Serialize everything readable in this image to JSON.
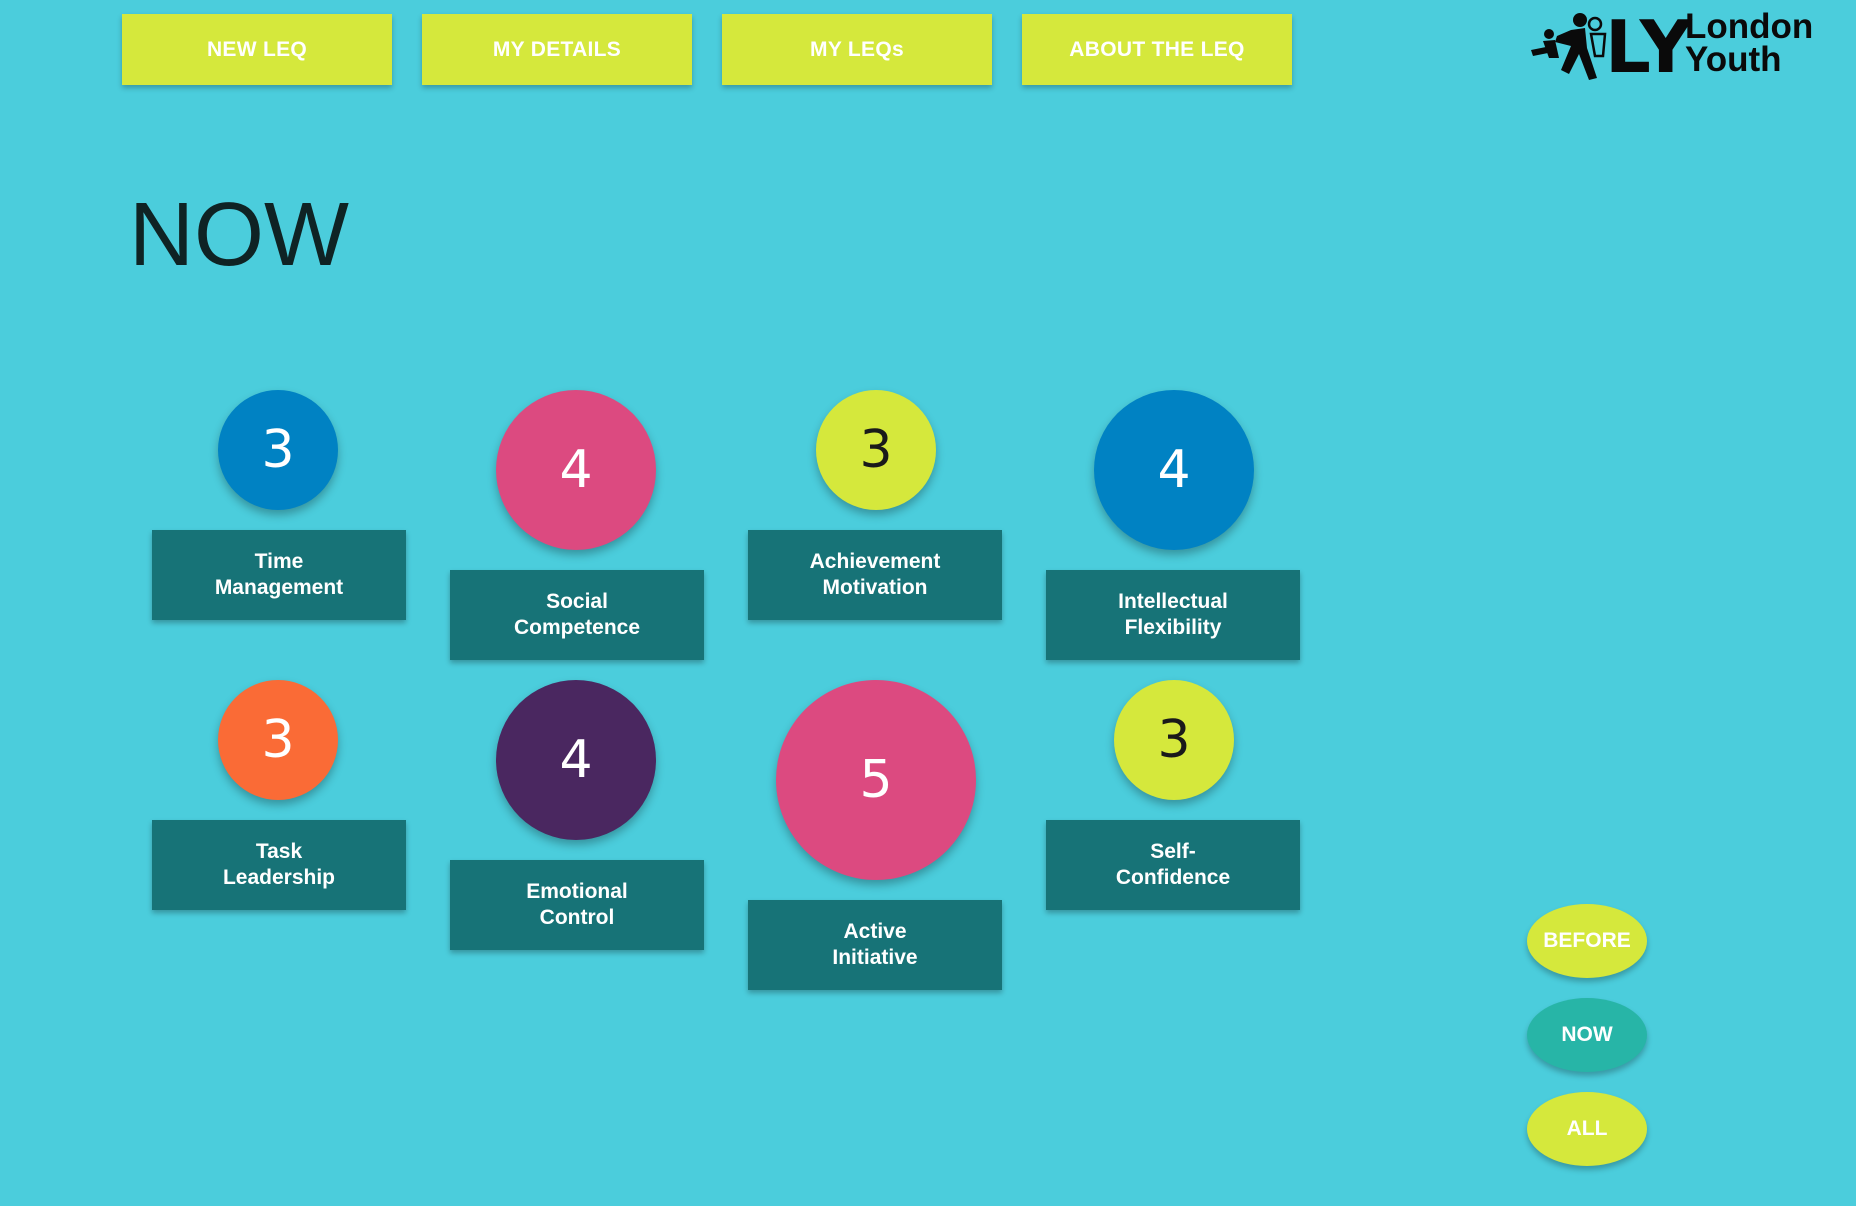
{
  "nav": {
    "new_leq": "NEW LEQ",
    "my_details": "MY DETAILS",
    "my_leqs": "MY LEQs",
    "about": "ABOUT THE LEQ"
  },
  "logo": {
    "initials": "LY",
    "line1": "London",
    "line2": "Youth"
  },
  "page_title": "NOW",
  "skills": [
    {
      "value": "3",
      "label": "Time\nManagement",
      "color": "#0082c3"
    },
    {
      "value": "4",
      "label": "Social\nCompetence",
      "color": "#dc4a80"
    },
    {
      "value": "3",
      "label": "Achievement\nMotivation",
      "color": "#d5e83c"
    },
    {
      "value": "4",
      "label": "Intellectual\nFlexibility",
      "color": "#0082c3"
    },
    {
      "value": "3",
      "label": "Task\nLeadership",
      "color": "#fa6b36"
    },
    {
      "value": "4",
      "label": "Emotional\nControl",
      "color": "#4a2760"
    },
    {
      "value": "5",
      "label": "Active\nInitiative",
      "color": "#dc4a80"
    },
    {
      "value": "3",
      "label": "Self-\nConfidence",
      "color": "#d5e83c"
    }
  ],
  "view_toggle": {
    "before": "BEFORE",
    "now": "NOW",
    "all": "ALL",
    "active": "now"
  },
  "colors": {
    "background": "#4bcddc",
    "accent": "#d5e83c",
    "label_bg": "#177377",
    "active_toggle": "#27b5a7"
  }
}
